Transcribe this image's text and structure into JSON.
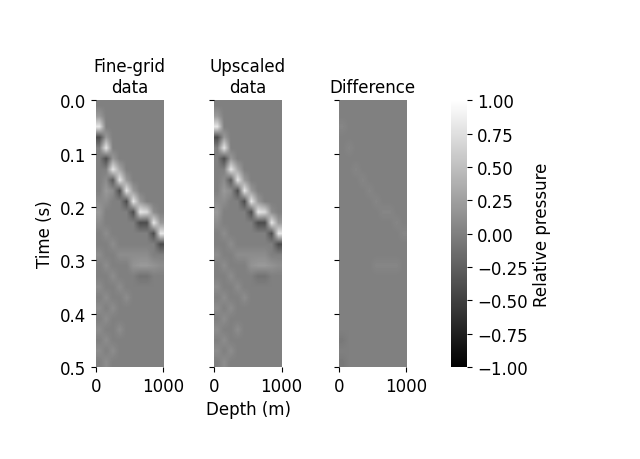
{
  "chart_data": [
    {
      "type": "heatmap",
      "title": "Fine-grid\ndata",
      "ylabel": "Time (s)",
      "xlim": [
        0,
        1000
      ],
      "ylim": [
        0.5,
        0.0
      ],
      "xticks": [
        0,
        1000
      ],
      "yticks": [
        0.0,
        0.1,
        0.2,
        0.3,
        0.4,
        0.5
      ],
      "color": "gray",
      "value_range": [
        -1.0,
        1.0
      ],
      "cells": [
        [
          0,
          0,
          0,
          0,
          0,
          0,
          0,
          0,
          0,
          0
        ],
        [
          0.2,
          0,
          0,
          0,
          0,
          0,
          0,
          0,
          0,
          0
        ],
        [
          0.8,
          0,
          0,
          0,
          0,
          0,
          0,
          0,
          0,
          0
        ],
        [
          -0.4,
          0.2,
          0,
          0,
          0,
          0,
          0,
          0,
          0,
          0
        ],
        [
          0,
          0.8,
          0,
          0,
          0,
          0,
          0,
          0,
          0,
          0
        ],
        [
          0,
          -0.4,
          0.2,
          0,
          0,
          0,
          0,
          0,
          0,
          0
        ],
        [
          0,
          0,
          0.8,
          0.3,
          0,
          0,
          0,
          0,
          0,
          0
        ],
        [
          0,
          0.1,
          -0.3,
          0.8,
          0.2,
          0,
          0,
          0,
          0,
          0
        ],
        [
          0,
          0.2,
          0.1,
          -0.4,
          0.8,
          0.2,
          0,
          0,
          0,
          0
        ],
        [
          0.1,
          0.1,
          0,
          0,
          -0.4,
          0.8,
          0.2,
          0,
          0,
          0
        ],
        [
          0.2,
          0,
          0,
          0,
          0,
          -0.4,
          0.8,
          0.7,
          0.1,
          0
        ],
        [
          0.1,
          0,
          0,
          0,
          0,
          0,
          -0.4,
          -0.4,
          0.8,
          0.2
        ],
        [
          0,
          0.1,
          0,
          0,
          0,
          0,
          0,
          0,
          -0.4,
          0.8
        ],
        [
          0,
          0,
          0.1,
          0,
          0,
          0,
          0,
          0,
          0,
          -0.4
        ],
        [
          0.1,
          0,
          0,
          0.1,
          0.1,
          0.1,
          0.1,
          0.1,
          0,
          0
        ],
        [
          0,
          0.1,
          0,
          0,
          0,
          0.15,
          0.2,
          0.2,
          0.15,
          0.1
        ],
        [
          0,
          0,
          0.1,
          0,
          0,
          0,
          -0.1,
          -0.1,
          0,
          0
        ],
        [
          0.1,
          0,
          0,
          0.1,
          0,
          0,
          0,
          0,
          0,
          0
        ],
        [
          0,
          0.1,
          0,
          0,
          0.1,
          0,
          0,
          0,
          0,
          0
        ],
        [
          0.1,
          0,
          0.1,
          0,
          0,
          0,
          0,
          0,
          0,
          0
        ],
        [
          0,
          0.1,
          0,
          0,
          0,
          0,
          0,
          0,
          0,
          0
        ],
        [
          0.1,
          0,
          0,
          0.1,
          0,
          0,
          0,
          0,
          0,
          0
        ],
        [
          0,
          0.1,
          0,
          0,
          0,
          0,
          0,
          0,
          0,
          0
        ],
        [
          0.1,
          0,
          0.1,
          0,
          0,
          0,
          0,
          0,
          0,
          0
        ],
        [
          0,
          0.1,
          0,
          0,
          0,
          0,
          0,
          0,
          0,
          0
        ]
      ]
    },
    {
      "type": "heatmap",
      "title": "Upscaled\ndata",
      "xlabel": "Depth (m)",
      "tick_labels": "x",
      "xlim": [
        0,
        1000
      ],
      "ylim": [
        0.5,
        0.0
      ],
      "xticks": [
        0,
        1000
      ],
      "yticks": [
        0.0,
        0.1,
        0.2,
        0.3,
        0.4,
        0.5
      ],
      "color": "gray",
      "value_range": [
        -1.0,
        1.0
      ],
      "cells": [
        [
          0,
          0,
          0,
          0,
          0,
          0,
          0,
          0,
          0,
          0
        ],
        [
          0.2,
          0,
          0,
          0,
          0,
          0,
          0,
          0,
          0,
          0
        ],
        [
          0.8,
          0,
          0,
          0,
          0,
          0,
          0,
          0,
          0,
          0
        ],
        [
          -0.4,
          0.2,
          0,
          0,
          0,
          0,
          0,
          0,
          0,
          0
        ],
        [
          0,
          0.8,
          0,
          0,
          0,
          0,
          0,
          0,
          0,
          0
        ],
        [
          0,
          -0.4,
          0.2,
          0,
          0,
          0,
          0,
          0,
          0,
          0
        ],
        [
          0,
          0,
          0.8,
          0.3,
          0,
          0,
          0,
          0,
          0,
          0
        ],
        [
          0,
          0.1,
          -0.3,
          0.8,
          0.2,
          0,
          0,
          0,
          0,
          0
        ],
        [
          0,
          0.2,
          0.1,
          -0.4,
          0.8,
          0.2,
          0,
          0,
          0,
          0
        ],
        [
          0.1,
          0.1,
          0,
          0,
          -0.4,
          0.8,
          0.2,
          0,
          0,
          0
        ],
        [
          0.2,
          0,
          0,
          0,
          0,
          -0.4,
          0.8,
          0.7,
          0.1,
          0
        ],
        [
          0.1,
          0,
          0,
          0,
          0,
          0,
          -0.4,
          -0.4,
          0.8,
          0.2
        ],
        [
          0,
          0.1,
          0,
          0,
          0,
          0,
          0,
          0,
          -0.4,
          0.8
        ],
        [
          0,
          0,
          0.1,
          0,
          0,
          0,
          0,
          0,
          0,
          -0.4
        ],
        [
          0.1,
          0,
          0,
          0.1,
          0.1,
          0.1,
          0.1,
          0.1,
          0,
          0
        ],
        [
          0,
          0.1,
          0,
          0,
          0,
          0.15,
          0.2,
          0.2,
          0.15,
          0.1
        ],
        [
          0,
          0,
          0.1,
          0,
          0,
          0,
          -0.1,
          -0.1,
          0,
          0
        ],
        [
          0.1,
          0,
          0,
          0.1,
          0,
          0,
          0,
          0,
          0,
          0
        ],
        [
          0,
          0.1,
          0,
          0,
          0.1,
          0,
          0,
          0,
          0,
          0
        ],
        [
          0.1,
          0,
          0.1,
          0,
          0,
          0,
          0,
          0,
          0,
          0
        ],
        [
          0,
          0.1,
          0,
          0,
          0,
          0,
          0,
          0,
          0,
          0
        ],
        [
          0.1,
          0,
          0,
          0.1,
          0,
          0,
          0,
          0,
          0,
          0
        ],
        [
          0,
          0.1,
          0,
          0,
          0,
          0,
          0,
          0,
          0,
          0
        ],
        [
          0.1,
          0,
          0.1,
          0,
          0,
          0,
          0,
          0,
          0,
          0
        ],
        [
          0,
          0.1,
          0,
          0,
          0,
          0,
          0,
          0,
          0,
          0
        ]
      ]
    },
    {
      "type": "heatmap",
      "title": "Difference",
      "tick_labels": "x",
      "xlim": [
        0,
        1000
      ],
      "ylim": [
        0.5,
        0.0
      ],
      "xticks": [
        0,
        1000
      ],
      "yticks": [
        0.0,
        0.1,
        0.2,
        0.3,
        0.4,
        0.5
      ],
      "color": "gray",
      "value_range": [
        -1.0,
        1.0
      ],
      "colorbar": {
        "label": "Relative pressure",
        "range": [
          -1.0,
          1.0
        ],
        "ticks": [
          {
            "value": -1.0,
            "label": "−1.00"
          },
          {
            "value": -0.75,
            "label": "−0.75"
          },
          {
            "value": -0.5,
            "label": "−0.50"
          },
          {
            "value": -0.25,
            "label": "−0.25"
          },
          {
            "value": 0.0,
            "label": "0.00"
          },
          {
            "value": 0.25,
            "label": "0.25"
          },
          {
            "value": 0.5,
            "label": "0.50"
          },
          {
            "value": 0.75,
            "label": "0.75"
          },
          {
            "value": 1.0,
            "label": "1.00"
          }
        ]
      },
      "cells": [
        [
          0,
          0,
          0,
          0,
          0,
          0,
          0,
          0,
          0,
          0
        ],
        [
          0,
          0,
          0,
          0,
          0,
          0,
          0,
          0,
          0,
          0
        ],
        [
          0.05,
          0,
          0,
          0,
          0,
          0,
          0,
          0,
          0,
          0
        ],
        [
          0,
          0,
          0,
          0,
          0,
          0,
          0,
          0,
          0,
          0
        ],
        [
          0,
          0.05,
          0,
          0,
          0,
          0,
          0,
          0,
          0,
          0
        ],
        [
          0,
          0,
          0,
          0,
          0,
          0,
          0,
          0,
          0,
          0
        ],
        [
          0,
          0,
          0.05,
          0,
          0,
          0,
          0,
          0,
          0,
          0
        ],
        [
          0,
          0,
          0,
          0.05,
          0,
          0,
          0,
          0,
          0,
          0
        ],
        [
          0,
          0,
          0,
          0,
          0.05,
          0,
          0,
          0,
          0,
          0
        ],
        [
          0,
          0,
          0,
          0,
          0,
          0.05,
          0,
          0,
          0,
          0
        ],
        [
          0,
          0,
          0,
          0,
          0,
          0,
          0.05,
          0.05,
          0,
          0
        ],
        [
          0,
          0,
          0,
          0,
          0,
          0,
          0,
          0,
          0.05,
          0
        ],
        [
          0,
          0,
          0,
          0,
          0,
          0,
          0,
          0,
          0,
          0.05
        ],
        [
          0,
          0,
          0,
          0,
          0,
          0,
          0,
          0,
          0,
          0
        ],
        [
          0,
          0,
          0,
          0,
          0,
          0,
          0,
          0,
          0,
          0
        ],
        [
          0,
          0,
          0,
          0,
          0,
          0.05,
          0.05,
          0.05,
          0.05,
          0
        ],
        [
          0,
          0,
          0,
          0,
          0,
          0,
          0,
          0,
          0,
          0
        ],
        [
          0,
          0,
          0,
          0,
          0,
          0,
          0,
          0,
          0,
          0
        ],
        [
          0,
          0,
          0,
          0,
          0,
          0,
          0,
          0,
          0,
          0
        ],
        [
          0,
          0,
          0,
          0,
          0,
          0,
          0,
          0,
          0,
          0
        ],
        [
          0,
          0,
          0,
          0,
          0,
          0,
          0,
          0,
          0,
          0
        ],
        [
          0,
          0,
          0,
          0,
          0,
          0,
          0,
          0,
          0,
          0
        ],
        [
          -0.05,
          0,
          0,
          0,
          0,
          0,
          0,
          0,
          0,
          0
        ],
        [
          0,
          0,
          0,
          0,
          0,
          0,
          0,
          0,
          0,
          0
        ],
        [
          -0.05,
          0,
          0,
          0,
          0,
          0,
          0,
          0,
          0,
          0
        ]
      ]
    }
  ]
}
